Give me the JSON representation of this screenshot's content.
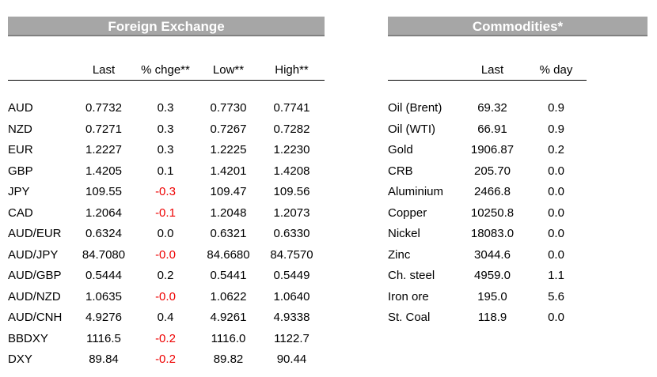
{
  "fx": {
    "title": "Foreign Exchange",
    "columns": [
      "",
      "Last",
      "% chge**",
      "Low**",
      "High**"
    ],
    "rows": [
      {
        "name": "AUD",
        "last": "0.7732",
        "chg": "0.3",
        "low": "0.7730",
        "high": "0.7741",
        "neg": false
      },
      {
        "name": "NZD",
        "last": "0.7271",
        "chg": "0.3",
        "low": "0.7267",
        "high": "0.7282",
        "neg": false
      },
      {
        "name": "EUR",
        "last": "1.2227",
        "chg": "0.3",
        "low": "1.2225",
        "high": "1.2230",
        "neg": false
      },
      {
        "name": "GBP",
        "last": "1.4205",
        "chg": "0.1",
        "low": "1.4201",
        "high": "1.4208",
        "neg": false
      },
      {
        "name": "JPY",
        "last": "109.55",
        "chg": "-0.3",
        "low": "109.47",
        "high": "109.56",
        "neg": true
      },
      {
        "name": "CAD",
        "last": "1.2064",
        "chg": "-0.1",
        "low": "1.2048",
        "high": "1.2073",
        "neg": true
      },
      {
        "name": "AUD/EUR",
        "last": "0.6324",
        "chg": "0.0",
        "low": "0.6321",
        "high": "0.6330",
        "neg": false
      },
      {
        "name": "AUD/JPY",
        "last": "84.7080",
        "chg": "-0.0",
        "low": "84.6680",
        "high": "84.7570",
        "neg": true
      },
      {
        "name": "AUD/GBP",
        "last": "0.5444",
        "chg": "0.2",
        "low": "0.5441",
        "high": "0.5449",
        "neg": false
      },
      {
        "name": "AUD/NZD",
        "last": "1.0635",
        "chg": "-0.0",
        "low": "1.0622",
        "high": "1.0640",
        "neg": true
      },
      {
        "name": "AUD/CNH",
        "last": "4.9276",
        "chg": "0.4",
        "low": "4.9261",
        "high": "4.9338",
        "neg": false
      },
      {
        "name": "BBDXY",
        "last": "1116.5",
        "chg": "-0.2",
        "low": "1116.0",
        "high": "1122.7",
        "neg": true
      },
      {
        "name": "DXY",
        "last": "89.84",
        "chg": "-0.2",
        "low": "89.82",
        "high": "90.44",
        "neg": true
      }
    ]
  },
  "commodities": {
    "title": "Commodities*",
    "columns": [
      "",
      "Last",
      "% day"
    ],
    "rows": [
      {
        "name": "Oil (Brent)",
        "last": "69.32",
        "day": "0.9"
      },
      {
        "name": "Oil (WTI)",
        "last": "66.91",
        "day": "0.9"
      },
      {
        "name": "Gold",
        "last": "1906.87",
        "day": "0.2"
      },
      {
        "name": "CRB",
        "last": "205.70",
        "day": "0.0"
      },
      {
        "name": "Aluminium",
        "last": "2466.8",
        "day": "0.0"
      },
      {
        "name": "Copper",
        "last": "10250.8",
        "day": "0.0"
      },
      {
        "name": "Nickel",
        "last": "18083.0",
        "day": "0.0"
      },
      {
        "name": "Zinc",
        "last": "3044.6",
        "day": "0.0"
      },
      {
        "name": "Ch. steel",
        "last": "4959.0",
        "day": "1.1"
      },
      {
        "name": "Iron ore",
        "last": "195.0",
        "day": "5.6"
      },
      {
        "name": "St. Coal",
        "last": "118.9",
        "day": "0.0"
      }
    ]
  },
  "colors": {
    "banner_bg": "#a6a6a6",
    "banner_text": "#ffffff",
    "negative": "#ee0000"
  }
}
